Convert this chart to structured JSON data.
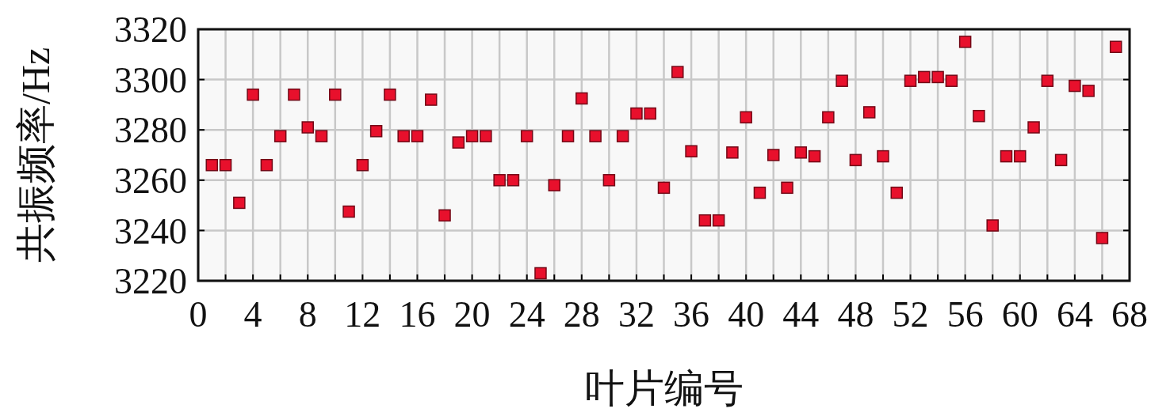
{
  "chart_data": {
    "type": "scatter",
    "xlabel": "叶片编号",
    "ylabel": "共振频率/Hz",
    "x": [
      1,
      2,
      3,
      4,
      5,
      6,
      7,
      8,
      9,
      10,
      11,
      12,
      13,
      14,
      15,
      16,
      17,
      18,
      19,
      20,
      21,
      22,
      23,
      24,
      25,
      26,
      27,
      28,
      29,
      30,
      31,
      32,
      33,
      34,
      35,
      36,
      37,
      38,
      39,
      40,
      41,
      42,
      43,
      44,
      45,
      46,
      47,
      48,
      49,
      50,
      51,
      52,
      53,
      54,
      55,
      56,
      57,
      58,
      59,
      60,
      61,
      62,
      63,
      64,
      65,
      66,
      67
    ],
    "values": [
      3266,
      3266,
      3251,
      3294,
      3266,
      3277.5,
      3294,
      3281,
      3277.5,
      3294,
      3247.5,
      3266,
      3279.5,
      3294,
      3277.5,
      3277.5,
      3292,
      3246,
      3275,
      3277.5,
      3277.5,
      3260,
      3260,
      3277.5,
      3223,
      3258,
      3277.5,
      3292.5,
      3277.5,
      3260,
      3277.5,
      3286.5,
      3286.5,
      3257,
      3303,
      3271.5,
      3244,
      3244,
      3271,
      3285,
      3255,
      3270,
      3257,
      3271,
      3269.5,
      3285,
      3299.5,
      3268,
      3287,
      3269.5,
      3255,
      3299.5,
      3301,
      3301,
      3299.5,
      3315,
      3285.5,
      3242,
      3269.5,
      3269.5,
      3281,
      3299.5,
      3268,
      3297.5,
      3295.5,
      3237,
      3313
    ],
    "color": "#e8102c",
    "marker": "square",
    "xlim": [
      0,
      68
    ],
    "xticks": [
      0,
      {
        "value": 2,
        "label": null
      },
      4,
      {
        "value": 6,
        "label": null
      },
      8,
      {
        "value": 10,
        "label": null
      },
      12,
      {
        "value": 14,
        "label": null
      },
      16,
      {
        "value": 18,
        "label": null
      },
      20,
      {
        "value": 22,
        "label": null
      },
      24,
      {
        "value": 26,
        "label": null
      },
      28,
      {
        "value": 30,
        "label": null
      },
      32,
      {
        "value": 34,
        "label": null
      },
      36,
      {
        "value": 38,
        "label": null
      },
      40,
      {
        "value": 42,
        "label": null
      },
      44,
      {
        "value": 46,
        "label": null
      },
      48,
      {
        "value": 50,
        "label": null
      },
      52,
      {
        "value": 54,
        "label": null
      },
      56,
      {
        "value": 58,
        "label": null
      },
      60,
      {
        "value": 62,
        "label": null
      },
      64,
      {
        "value": 66,
        "label": null
      },
      68
    ],
    "ylim": [
      3220,
      3320
    ],
    "yticks": [
      3220,
      3240,
      3260,
      3280,
      3300,
      3320
    ],
    "grid": true
  }
}
